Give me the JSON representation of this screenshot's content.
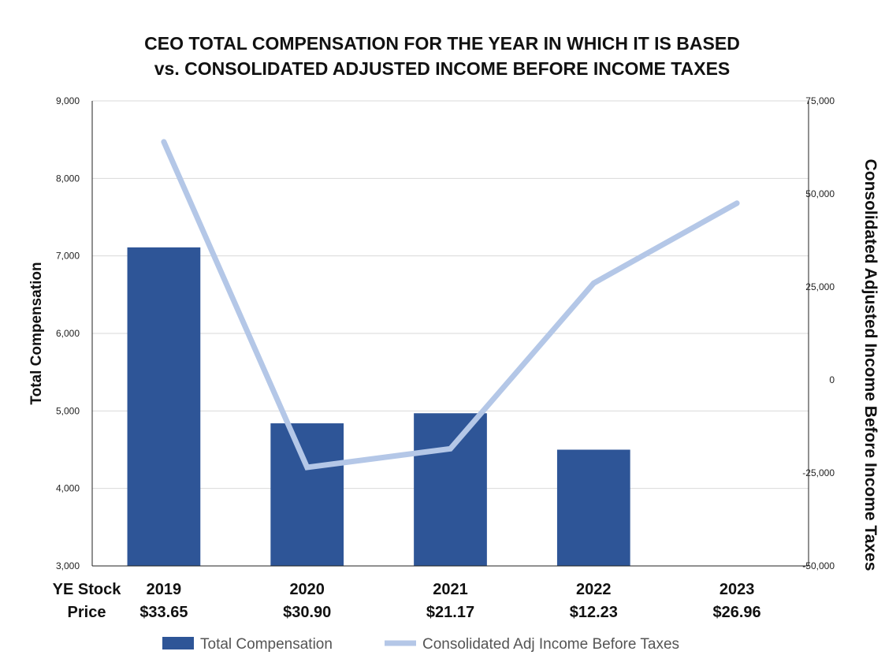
{
  "chart_data": {
    "type": "bar",
    "title_lines": [
      "CEO TOTAL COMPENSATION FOR THE YEAR IN WHICH IT IS BASED",
      "vs. CONSOLIDATED ADJUSTED INCOME BEFORE INCOME TAXES"
    ],
    "categories": [
      "2019",
      "2020",
      "2021",
      "2022",
      "2023"
    ],
    "stock_prices": [
      "$33.65",
      "$30.90",
      "$21.17",
      "$12.23",
      "$26.96"
    ],
    "row_label_lines": [
      "YE Stock",
      "Price"
    ],
    "ylabel": "Total Compensation",
    "ylabel_right": "Consolidated Adjusted Income Before Income Taxes",
    "ylim": [
      3000,
      9000
    ],
    "yticks": [
      "3,000",
      "4,000",
      "5,000",
      "6,000",
      "7,000",
      "8,000",
      "9,000"
    ],
    "y2lim": [
      -50000,
      75000
    ],
    "y2ticks": [
      "-50,000",
      "-25,000",
      "0",
      "25,000",
      "50,000",
      "75,000"
    ],
    "grid": true,
    "series": [
      {
        "name": "Total Compensation",
        "kind": "bar",
        "axis": "left",
        "color": "#2E5597",
        "values": [
          7110,
          4840,
          4970,
          4500,
          null
        ]
      },
      {
        "name": "Consolidated Adj Income Before Taxes",
        "kind": "line",
        "axis": "right",
        "color": "#B4C7E7",
        "values": [
          64000,
          -23500,
          -18500,
          26000,
          47500
        ]
      }
    ],
    "legend_position": "bottom"
  }
}
